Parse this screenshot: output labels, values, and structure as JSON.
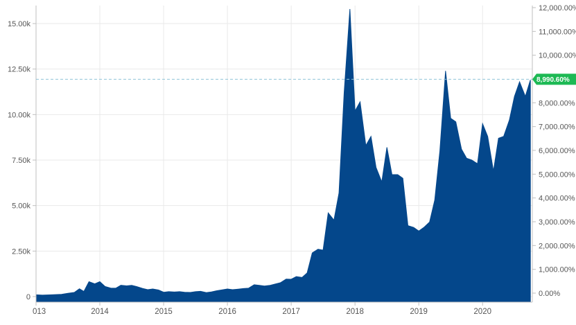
{
  "chart_data": {
    "type": "area",
    "title": "",
    "xlabel": "",
    "ylabel": "",
    "color": "#04478b",
    "grid": true,
    "x_range": [
      2013.0,
      2020.78
    ],
    "x_ticks": [
      "013",
      "2014",
      "2015",
      "2016",
      "2017",
      "2018",
      "2019",
      "2020"
    ],
    "ylim_left": [
      0,
      15800
    ],
    "y_ticks_left": [
      {
        "value": 0,
        "label": "0"
      },
      {
        "value": 2500,
        "label": "2.50k"
      },
      {
        "value": 5000,
        "label": "5.00k"
      },
      {
        "value": 7500,
        "label": "7.50k"
      },
      {
        "value": 10000,
        "label": "10.00k"
      },
      {
        "value": 12500,
        "label": "12.50k"
      },
      {
        "value": 15000,
        "label": "15.00k"
      }
    ],
    "ylim_right_pct": [
      0,
      12000
    ],
    "y_ticks_right": [
      {
        "value": 0,
        "label": "0.00%"
      },
      {
        "value": 1000,
        "label": "1,000.00%"
      },
      {
        "value": 2000,
        "label": "2,000.00%"
      },
      {
        "value": 3000,
        "label": "3,000.00%"
      },
      {
        "value": 4000,
        "label": "4,000.00%"
      },
      {
        "value": 5000,
        "label": "5,000.00%"
      },
      {
        "value": 6000,
        "label": "6,000.00%"
      },
      {
        "value": 7000,
        "label": "7,000.00%"
      },
      {
        "value": 8000,
        "label": "8,000.00%"
      },
      {
        "value": 9000,
        "label": "9,000.00%"
      },
      {
        "value": 10000,
        "label": "10,000.00%"
      },
      {
        "value": 11000,
        "label": "11,000.00%"
      },
      {
        "value": 12000,
        "label": "12,000.00%"
      }
    ],
    "current": {
      "label": "8,990.60%",
      "value_pct": 8990.6,
      "color": "#1db954"
    },
    "series": [
      {
        "values": [
          [
            2013.0,
            100
          ],
          [
            2013.1,
            80
          ],
          [
            2013.25,
            100
          ],
          [
            2013.4,
            120
          ],
          [
            2013.5,
            180
          ],
          [
            2013.6,
            230
          ],
          [
            2013.68,
            430
          ],
          [
            2013.75,
            280
          ],
          [
            2013.83,
            820
          ],
          [
            2013.92,
            700
          ],
          [
            2014.0,
            820
          ],
          [
            2014.08,
            560
          ],
          [
            2014.17,
            470
          ],
          [
            2014.25,
            460
          ],
          [
            2014.33,
            620
          ],
          [
            2014.42,
            590
          ],
          [
            2014.5,
            620
          ],
          [
            2014.58,
            550
          ],
          [
            2014.67,
            450
          ],
          [
            2014.75,
            380
          ],
          [
            2014.83,
            420
          ],
          [
            2014.92,
            360
          ],
          [
            2015.0,
            240
          ],
          [
            2015.08,
            270
          ],
          [
            2015.17,
            250
          ],
          [
            2015.25,
            270
          ],
          [
            2015.33,
            240
          ],
          [
            2015.42,
            230
          ],
          [
            2015.5,
            270
          ],
          [
            2015.58,
            290
          ],
          [
            2015.67,
            220
          ],
          [
            2015.75,
            260
          ],
          [
            2015.83,
            320
          ],
          [
            2015.92,
            370
          ],
          [
            2016.0,
            420
          ],
          [
            2016.08,
            380
          ],
          [
            2016.17,
            410
          ],
          [
            2016.25,
            440
          ],
          [
            2016.33,
            460
          ],
          [
            2016.42,
            650
          ],
          [
            2016.5,
            620
          ],
          [
            2016.58,
            580
          ],
          [
            2016.67,
            620
          ],
          [
            2016.75,
            690
          ],
          [
            2016.83,
            760
          ],
          [
            2016.92,
            960
          ],
          [
            2017.0,
            950
          ],
          [
            2017.08,
            1100
          ],
          [
            2017.17,
            1050
          ],
          [
            2017.25,
            1300
          ],
          [
            2017.33,
            2400
          ],
          [
            2017.42,
            2600
          ],
          [
            2017.5,
            2550
          ],
          [
            2017.58,
            4600
          ],
          [
            2017.67,
            4200
          ],
          [
            2017.75,
            5700
          ],
          [
            2017.83,
            11200
          ],
          [
            2017.92,
            15800
          ],
          [
            2018.0,
            10200
          ],
          [
            2018.08,
            10700
          ],
          [
            2018.17,
            8300
          ],
          [
            2018.25,
            8800
          ],
          [
            2018.33,
            7100
          ],
          [
            2018.42,
            6300
          ],
          [
            2018.5,
            8200
          ],
          [
            2018.58,
            6700
          ],
          [
            2018.67,
            6700
          ],
          [
            2018.75,
            6500
          ],
          [
            2018.83,
            3900
          ],
          [
            2018.92,
            3800
          ],
          [
            2019.0,
            3600
          ],
          [
            2019.08,
            3800
          ],
          [
            2019.17,
            4100
          ],
          [
            2019.25,
            5300
          ],
          [
            2019.33,
            8000
          ],
          [
            2019.42,
            12400
          ],
          [
            2019.5,
            9800
          ],
          [
            2019.58,
            9600
          ],
          [
            2019.67,
            8100
          ],
          [
            2019.75,
            7600
          ],
          [
            2019.83,
            7500
          ],
          [
            2019.92,
            7300
          ],
          [
            2020.0,
            9500
          ],
          [
            2020.08,
            8800
          ],
          [
            2020.17,
            6900
          ],
          [
            2020.25,
            8700
          ],
          [
            2020.33,
            8800
          ],
          [
            2020.42,
            9700
          ],
          [
            2020.5,
            11000
          ],
          [
            2020.58,
            11800
          ],
          [
            2020.67,
            11000
          ],
          [
            2020.75,
            11900
          ]
        ]
      }
    ]
  }
}
